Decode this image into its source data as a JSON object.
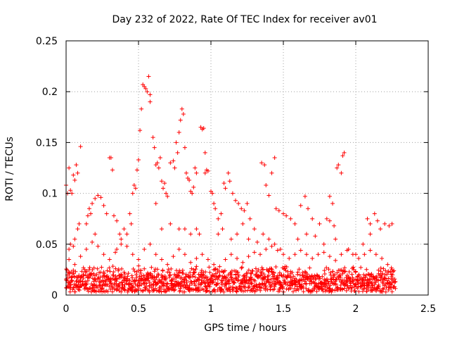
{
  "chart_data": {
    "type": "scatter",
    "title": "Day 232 of 2022, Rate Of TEC Index for receiver av01",
    "xlabel": "GPS time / hours",
    "ylabel": "ROTI / TECUs",
    "xlim": [
      0,
      2.5
    ],
    "ylim": [
      0,
      0.25
    ],
    "xticks": [
      0,
      0.5,
      1,
      1.5,
      2,
      2.5
    ],
    "yticks": [
      0,
      0.05,
      0.1,
      0.15,
      0.2,
      0.25
    ],
    "xtick_labels": [
      "0",
      "0.5",
      "1",
      "1.5",
      "2",
      "2.5"
    ],
    "ytick_labels": [
      "0",
      "0.05",
      "0.1",
      "0.15",
      "0.2",
      "0.25"
    ],
    "grid": true,
    "marker": "plus",
    "color": "#ff0000",
    "series": [
      {
        "points": [
          [
            0.0,
            0.108
          ],
          [
            0.01,
            0.1
          ],
          [
            0.02,
            0.125
          ],
          [
            0.03,
            0.103
          ],
          [
            0.04,
            0.1
          ],
          [
            0.05,
            0.118
          ],
          [
            0.06,
            0.113
          ],
          [
            0.07,
            0.128
          ],
          [
            0.08,
            0.12
          ],
          [
            0.1,
            0.146
          ],
          [
            0.02,
            0.045
          ],
          [
            0.03,
            0.05
          ],
          [
            0.05,
            0.048
          ],
          [
            0.08,
            0.065
          ],
          [
            0.09,
            0.07
          ],
          [
            0.06,
            0.055
          ],
          [
            0.14,
            0.07
          ],
          [
            0.16,
            0.085
          ],
          [
            0.18,
            0.09
          ],
          [
            0.2,
            0.095
          ],
          [
            0.22,
            0.098
          ],
          [
            0.24,
            0.096
          ],
          [
            0.15,
            0.078
          ],
          [
            0.17,
            0.08
          ],
          [
            0.26,
            0.088
          ],
          [
            0.28,
            0.08
          ],
          [
            0.3,
            0.135
          ],
          [
            0.31,
            0.135
          ],
          [
            0.32,
            0.123
          ],
          [
            0.33,
            0.078
          ],
          [
            0.35,
            0.073
          ],
          [
            0.37,
            0.06
          ],
          [
            0.38,
            0.055
          ],
          [
            0.4,
            0.065
          ],
          [
            0.42,
            0.06
          ],
          [
            0.44,
            0.08
          ],
          [
            0.45,
            0.07
          ],
          [
            0.46,
            0.1
          ],
          [
            0.47,
            0.108
          ],
          [
            0.48,
            0.105
          ],
          [
            0.49,
            0.123
          ],
          [
            0.5,
            0.133
          ],
          [
            0.51,
            0.162
          ],
          [
            0.52,
            0.183
          ],
          [
            0.53,
            0.207
          ],
          [
            0.54,
            0.205
          ],
          [
            0.55,
            0.203
          ],
          [
            0.56,
            0.2
          ],
          [
            0.57,
            0.215
          ],
          [
            0.58,
            0.197
          ],
          [
            0.58,
            0.19
          ],
          [
            0.6,
            0.155
          ],
          [
            0.61,
            0.145
          ],
          [
            0.62,
            0.128
          ],
          [
            0.63,
            0.13
          ],
          [
            0.64,
            0.125
          ],
          [
            0.65,
            0.135
          ],
          [
            0.66,
            0.112
          ],
          [
            0.67,
            0.105
          ],
          [
            0.68,
            0.11
          ],
          [
            0.69,
            0.1
          ],
          [
            0.7,
            0.097
          ],
          [
            0.72,
            0.13
          ],
          [
            0.74,
            0.132
          ],
          [
            0.75,
            0.125
          ],
          [
            0.76,
            0.15
          ],
          [
            0.77,
            0.14
          ],
          [
            0.78,
            0.16
          ],
          [
            0.79,
            0.172
          ],
          [
            0.8,
            0.183
          ],
          [
            0.81,
            0.178
          ],
          [
            0.82,
            0.145
          ],
          [
            0.83,
            0.12
          ],
          [
            0.84,
            0.115
          ],
          [
            0.85,
            0.113
          ],
          [
            0.86,
            0.102
          ],
          [
            0.87,
            0.1
          ],
          [
            0.88,
            0.106
          ],
          [
            0.89,
            0.125
          ],
          [
            0.9,
            0.12
          ],
          [
            0.93,
            0.165
          ],
          [
            0.94,
            0.163
          ],
          [
            0.95,
            0.164
          ],
          [
            0.96,
            0.12
          ],
          [
            0.97,
            0.123
          ],
          [
            0.98,
            0.122
          ],
          [
            0.96,
            0.14
          ],
          [
            1.0,
            0.102
          ],
          [
            1.01,
            0.1
          ],
          [
            1.02,
            0.09
          ],
          [
            1.03,
            0.085
          ],
          [
            1.05,
            0.075
          ],
          [
            1.07,
            0.08
          ],
          [
            1.09,
            0.11
          ],
          [
            1.1,
            0.105
          ],
          [
            1.12,
            0.12
          ],
          [
            1.13,
            0.112
          ],
          [
            1.15,
            0.1
          ],
          [
            1.17,
            0.093
          ],
          [
            1.19,
            0.09
          ],
          [
            1.21,
            0.085
          ],
          [
            1.23,
            0.083
          ],
          [
            1.25,
            0.09
          ],
          [
            1.27,
            0.075
          ],
          [
            1.3,
            0.065
          ],
          [
            1.35,
            0.13
          ],
          [
            1.37,
            0.128
          ],
          [
            1.38,
            0.108
          ],
          [
            1.4,
            0.098
          ],
          [
            1.42,
            0.12
          ],
          [
            1.44,
            0.135
          ],
          [
            1.45,
            0.085
          ],
          [
            1.47,
            0.083
          ],
          [
            1.5,
            0.08
          ],
          [
            1.52,
            0.078
          ],
          [
            1.55,
            0.075
          ],
          [
            1.58,
            0.07
          ],
          [
            1.62,
            0.088
          ],
          [
            1.65,
            0.097
          ],
          [
            1.67,
            0.085
          ],
          [
            1.7,
            0.075
          ],
          [
            1.75,
            0.07
          ],
          [
            1.8,
            0.075
          ],
          [
            1.82,
            0.073
          ],
          [
            1.85,
            0.068
          ],
          [
            1.87,
            0.125
          ],
          [
            1.88,
            0.128
          ],
          [
            1.9,
            0.12
          ],
          [
            1.91,
            0.137
          ],
          [
            1.92,
            0.14
          ],
          [
            1.82,
            0.097
          ],
          [
            1.84,
            0.09
          ],
          [
            2.08,
            0.075
          ],
          [
            2.1,
            0.07
          ],
          [
            2.13,
            0.08
          ],
          [
            2.15,
            0.073
          ],
          [
            2.17,
            0.065
          ],
          [
            2.2,
            0.07
          ],
          [
            2.23,
            0.068
          ],
          [
            2.25,
            0.07
          ],
          [
            0.2,
            0.06
          ],
          [
            0.35,
            0.045
          ],
          [
            0.62,
            0.09
          ],
          [
            0.66,
            0.065
          ],
          [
            0.72,
            0.07
          ],
          [
            0.78,
            0.065
          ],
          [
            0.82,
            0.065
          ],
          [
            0.86,
            0.06
          ],
          [
            0.9,
            0.065
          ],
          [
            0.92,
            0.06
          ],
          [
            1.05,
            0.06
          ],
          [
            1.08,
            0.065
          ],
          [
            1.14,
            0.055
          ],
          [
            1.18,
            0.06
          ],
          [
            1.22,
            0.07
          ],
          [
            1.26,
            0.055
          ],
          [
            1.32,
            0.052
          ],
          [
            1.36,
            0.06
          ],
          [
            1.4,
            0.055
          ],
          [
            1.44,
            0.05
          ],
          [
            1.48,
            0.045
          ],
          [
            1.6,
            0.055
          ],
          [
            1.66,
            0.06
          ],
          [
            1.72,
            0.058
          ],
          [
            1.78,
            0.05
          ],
          [
            1.86,
            0.055
          ],
          [
            1.95,
            0.045
          ],
          [
            2.0,
            0.04
          ],
          [
            2.05,
            0.05
          ],
          [
            2.1,
            0.06
          ],
          [
            0.02,
            0.035
          ],
          [
            0.06,
            0.03
          ],
          [
            0.1,
            0.038
          ],
          [
            0.14,
            0.045
          ],
          [
            0.18,
            0.052
          ],
          [
            0.22,
            0.048
          ],
          [
            0.26,
            0.04
          ],
          [
            0.3,
            0.035
          ],
          [
            0.34,
            0.042
          ],
          [
            0.38,
            0.05
          ],
          [
            0.42,
            0.048
          ],
          [
            0.46,
            0.04
          ],
          [
            0.5,
            0.035
          ],
          [
            0.54,
            0.045
          ],
          [
            0.58,
            0.05
          ],
          [
            0.62,
            0.04
          ],
          [
            0.66,
            0.035
          ],
          [
            0.7,
            0.03
          ],
          [
            0.74,
            0.038
          ],
          [
            0.78,
            0.045
          ],
          [
            0.82,
            0.04
          ],
          [
            0.86,
            0.032
          ],
          [
            0.9,
            0.036
          ],
          [
            0.94,
            0.04
          ],
          [
            0.98,
            0.035
          ],
          [
            1.02,
            0.03
          ],
          [
            1.06,
            0.028
          ],
          [
            1.1,
            0.035
          ],
          [
            1.14,
            0.04
          ],
          [
            1.18,
            0.036
          ],
          [
            1.22,
            0.032
          ],
          [
            1.26,
            0.038
          ],
          [
            1.3,
            0.042
          ],
          [
            1.34,
            0.04
          ],
          [
            1.38,
            0.045
          ],
          [
            1.42,
            0.048
          ],
          [
            1.46,
            0.044
          ],
          [
            1.5,
            0.04
          ],
          [
            1.54,
            0.036
          ],
          [
            1.58,
            0.04
          ],
          [
            1.62,
            0.044
          ],
          [
            1.66,
            0.04
          ],
          [
            1.7,
            0.036
          ],
          [
            1.74,
            0.04
          ],
          [
            1.78,
            0.042
          ],
          [
            1.82,
            0.038
          ],
          [
            1.86,
            0.034
          ],
          [
            1.9,
            0.04
          ],
          [
            1.94,
            0.044
          ],
          [
            1.98,
            0.04
          ],
          [
            2.02,
            0.036
          ],
          [
            2.06,
            0.04
          ],
          [
            2.1,
            0.044
          ],
          [
            2.14,
            0.04
          ],
          [
            2.18,
            0.036
          ],
          [
            2.22,
            0.03
          ],
          [
            2.25,
            0.025
          ]
        ]
      }
    ],
    "dense_band": {
      "x_start": 0.0,
      "x_end": 2.27,
      "x_step": 0.01,
      "y_low": 0.003,
      "y_high": 0.03
    }
  }
}
